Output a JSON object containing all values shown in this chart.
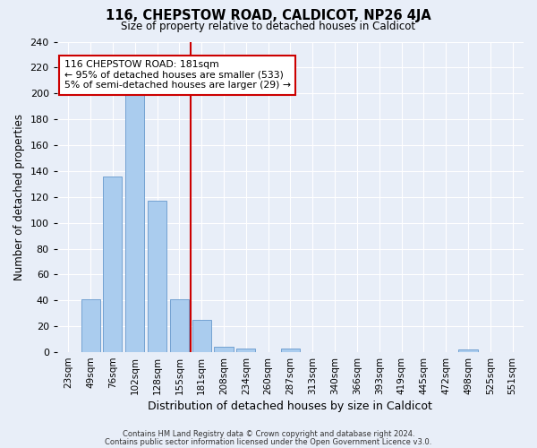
{
  "title": "116, CHEPSTOW ROAD, CALDICOT, NP26 4JA",
  "subtitle": "Size of property relative to detached houses in Caldicot",
  "xlabel": "Distribution of detached houses by size in Caldicot",
  "ylabel": "Number of detached properties",
  "bin_labels": [
    "23sqm",
    "49sqm",
    "76sqm",
    "102sqm",
    "128sqm",
    "155sqm",
    "181sqm",
    "208sqm",
    "234sqm",
    "260sqm",
    "287sqm",
    "313sqm",
    "340sqm",
    "366sqm",
    "393sqm",
    "419sqm",
    "445sqm",
    "472sqm",
    "498sqm",
    "525sqm",
    "551sqm"
  ],
  "bar_heights": [
    0,
    41,
    136,
    202,
    117,
    41,
    25,
    4,
    3,
    0,
    3,
    0,
    0,
    0,
    0,
    0,
    0,
    0,
    2,
    0,
    0
  ],
  "red_line_bin_index": 6,
  "bar_color": "#aaccee",
  "bar_edge_color": "#6699cc",
  "red_line_color": "#cc0000",
  "background_color": "#e8eef8",
  "grid_color": "#ffffff",
  "annotation_text": "116 CHEPSTOW ROAD: 181sqm\n← 95% of detached houses are smaller (533)\n5% of semi-detached houses are larger (29) →",
  "annotation_box_color": "#ffffff",
  "annotation_border_color": "#cc0000",
  "ylim": [
    0,
    240
  ],
  "yticks": [
    0,
    20,
    40,
    60,
    80,
    100,
    120,
    140,
    160,
    180,
    200,
    220,
    240
  ],
  "footer_line1": "Contains HM Land Registry data © Crown copyright and database right 2024.",
  "footer_line2": "Contains public sector information licensed under the Open Government Licence v3.0."
}
